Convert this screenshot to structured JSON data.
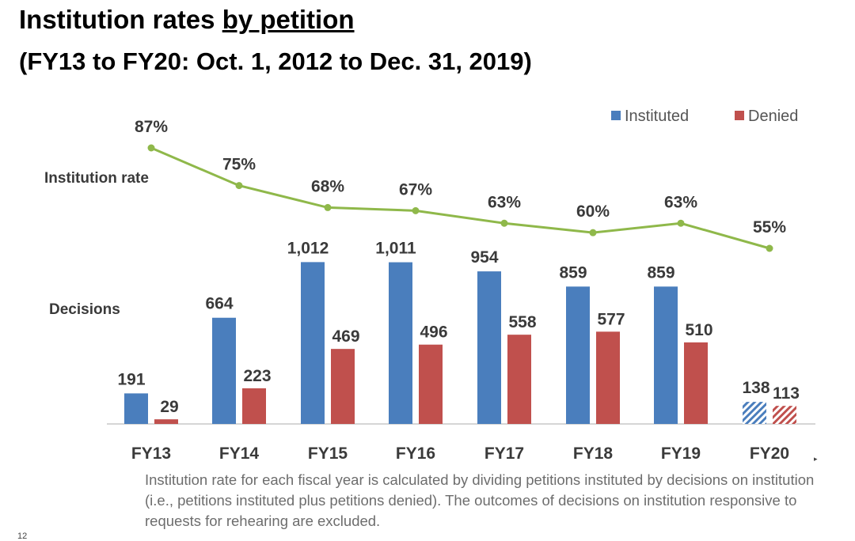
{
  "header": {
    "title_prefix": "Institution rates",
    "title_emph": "by petition",
    "subtitle": "(FY13 to FY20: Oct. 1, 2012 to Dec. 31, 2019)"
  },
  "chart_data": {
    "type": "bar",
    "categories": [
      "FY13",
      "FY14",
      "FY15",
      "FY16",
      "FY17",
      "FY18",
      "FY19",
      "FY20"
    ],
    "series": [
      {
        "name": "Instituted",
        "values": [
          191,
          664,
          1012,
          1011,
          954,
          859,
          859,
          138
        ],
        "labels": [
          "191",
          "664",
          "1,012",
          "1,011",
          "954",
          "859",
          "859",
          "138"
        ],
        "color": "#4a7ebd"
      },
      {
        "name": "Denied",
        "values": [
          29,
          223,
          469,
          496,
          558,
          577,
          510,
          113
        ],
        "labels": [
          "29",
          "223",
          "469",
          "496",
          "558",
          "577",
          "510",
          "113"
        ],
        "color": "#c0504d"
      }
    ],
    "rate_line": {
      "values": [
        87,
        75,
        68,
        67,
        63,
        60,
        63,
        55
      ],
      "labels": [
        "87%",
        "75%",
        "68%",
        "67%",
        "63%",
        "60%",
        "63%",
        "55%"
      ],
      "color": "#8fb84a"
    },
    "row_labels": {
      "rate": "Institution rate",
      "decisions": "Decisions"
    },
    "hatched_category": "FY20",
    "legend_position": "top-right",
    "grid": false
  },
  "footnote": "Institution rate for each fiscal year is calculated by dividing petitions instituted by decisions on institution (i.e., petitions instituted plus petitions denied). The outcomes of decisions on institution responsive to requests for rehearing are excluded.",
  "page_number": "12"
}
